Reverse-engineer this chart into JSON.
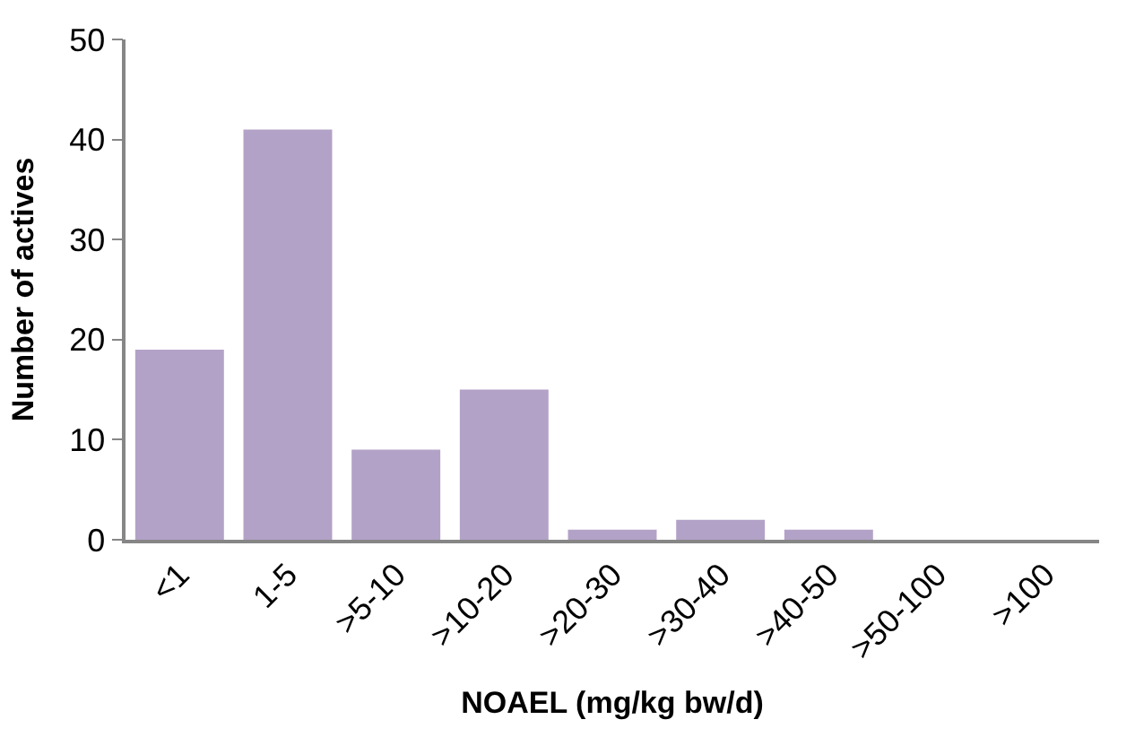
{
  "chart_data": {
    "type": "bar",
    "xlabel": "NOAEL (mg/kg bw/d)",
    "ylabel": "Number of actives",
    "categories": [
      "<1",
      "1-5",
      ">5-10",
      ">10-20",
      ">20-30",
      ">30-40",
      ">40-50",
      ">50-100",
      ">100"
    ],
    "values": [
      19,
      41,
      9,
      15,
      1,
      2,
      1,
      0,
      0
    ],
    "color": "#b3a2c7",
    "ylim": [
      0,
      50
    ],
    "yticks": [
      0,
      10,
      20,
      30,
      40,
      50
    ]
  }
}
